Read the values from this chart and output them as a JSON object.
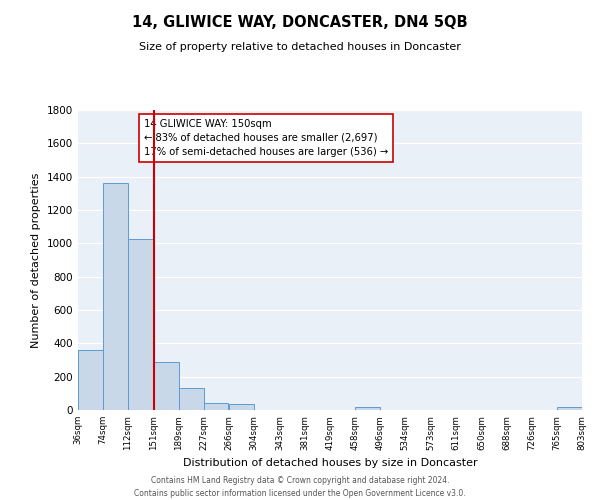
{
  "title": "14, GLIWICE WAY, DONCASTER, DN4 5QB",
  "subtitle": "Size of property relative to detached houses in Doncaster",
  "xlabel": "Distribution of detached houses by size in Doncaster",
  "ylabel": "Number of detached properties",
  "bar_left_edges": [
    36,
    74,
    112,
    151,
    189,
    227,
    266,
    304,
    343,
    381,
    419,
    458,
    496,
    534,
    573,
    611,
    650,
    688,
    726,
    765
  ],
  "bar_heights": [
    360,
    1360,
    1025,
    290,
    130,
    45,
    35,
    0,
    0,
    0,
    0,
    20,
    0,
    0,
    0,
    0,
    0,
    0,
    0,
    20
  ],
  "bin_width": 38,
  "bar_color": "#c8d8e8",
  "bar_edge_color": "#5b9bd5",
  "tick_labels": [
    "36sqm",
    "74sqm",
    "112sqm",
    "151sqm",
    "189sqm",
    "227sqm",
    "266sqm",
    "304sqm",
    "343sqm",
    "381sqm",
    "419sqm",
    "458sqm",
    "496sqm",
    "534sqm",
    "573sqm",
    "611sqm",
    "650sqm",
    "688sqm",
    "726sqm",
    "765sqm",
    "803sqm"
  ],
  "property_line_x": 151,
  "property_line_color": "#cc0000",
  "annotation_title": "14 GLIWICE WAY: 150sqm",
  "annotation_line1": "← 83% of detached houses are smaller (2,697)",
  "annotation_line2": "17% of semi-detached houses are larger (536) →",
  "ylim": [
    0,
    1800
  ],
  "yticks": [
    0,
    200,
    400,
    600,
    800,
    1000,
    1200,
    1400,
    1600,
    1800
  ],
  "bg_color": "#eaf0f8",
  "footer_line1": "Contains HM Land Registry data © Crown copyright and database right 2024.",
  "footer_line2": "Contains public sector information licensed under the Open Government Licence v3.0."
}
